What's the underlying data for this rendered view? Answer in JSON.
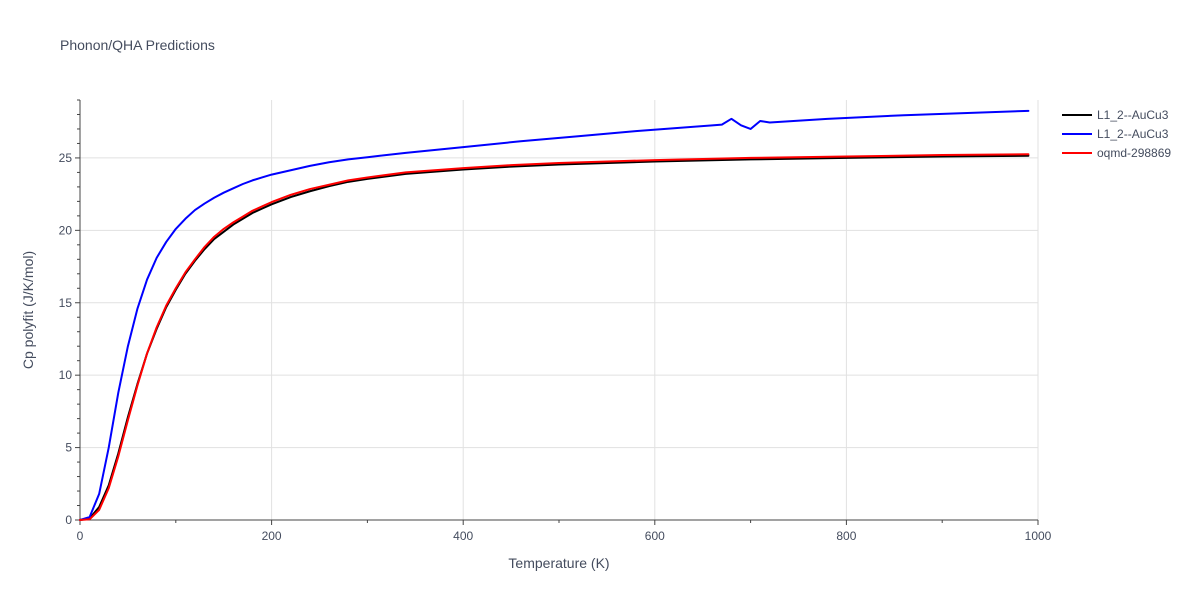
{
  "chart_data": {
    "type": "line",
    "title": "Phonon/QHA Predictions",
    "xlabel": "Temperature (K)",
    "ylabel": "Cp polyfit (J/K/mol)",
    "xlim": [
      0,
      1000
    ],
    "ylim": [
      0,
      29
    ],
    "x_ticks": [
      0,
      200,
      400,
      600,
      800,
      1000
    ],
    "y_ticks": [
      0,
      5,
      10,
      15,
      20,
      25
    ],
    "grid": true,
    "legend_position": "top-right",
    "series": [
      {
        "name": "L1_2--AuCu3",
        "color": "#000000",
        "x": [
          0,
          10,
          20,
          30,
          40,
          50,
          60,
          70,
          80,
          90,
          100,
          110,
          120,
          130,
          140,
          150,
          160,
          170,
          180,
          190,
          200,
          220,
          240,
          260,
          280,
          300,
          340,
          400,
          450,
          500,
          600,
          700,
          800,
          900,
          990
        ],
        "y": [
          0,
          0.1,
          0.9,
          2.4,
          4.6,
          7.1,
          9.4,
          11.5,
          13.2,
          14.7,
          15.9,
          17.0,
          17.9,
          18.7,
          19.4,
          19.9,
          20.4,
          20.8,
          21.2,
          21.5,
          21.8,
          22.3,
          22.7,
          23.05,
          23.35,
          23.55,
          23.9,
          24.2,
          24.4,
          24.55,
          24.75,
          24.9,
          25.0,
          25.1,
          25.15
        ]
      },
      {
        "name": "L1_2--AuCu3",
        "color": "#0000ff",
        "x": [
          0,
          10,
          20,
          30,
          40,
          50,
          60,
          70,
          80,
          90,
          100,
          110,
          120,
          130,
          140,
          150,
          160,
          170,
          180,
          190,
          200,
          220,
          240,
          260,
          280,
          300,
          340,
          400,
          460,
          520,
          580,
          620,
          660,
          670,
          680,
          690,
          700,
          710,
          720,
          780,
          860,
          990
        ],
        "y": [
          0,
          0.2,
          1.8,
          5.0,
          8.8,
          12.0,
          14.6,
          16.6,
          18.1,
          19.2,
          20.1,
          20.8,
          21.4,
          21.85,
          22.25,
          22.6,
          22.9,
          23.2,
          23.45,
          23.65,
          23.85,
          24.15,
          24.45,
          24.7,
          24.9,
          25.05,
          25.35,
          25.75,
          26.15,
          26.5,
          26.85,
          27.05,
          27.25,
          27.3,
          27.7,
          27.25,
          27.0,
          27.55,
          27.45,
          27.7,
          27.95,
          28.25
        ]
      },
      {
        "name": "oqmd-298869",
        "color": "#ff0000",
        "x": [
          0,
          10,
          20,
          30,
          40,
          50,
          60,
          70,
          80,
          90,
          100,
          110,
          120,
          130,
          140,
          150,
          160,
          170,
          180,
          190,
          200,
          220,
          240,
          260,
          280,
          300,
          340,
          400,
          450,
          500,
          600,
          700,
          800,
          900,
          990
        ],
        "y": [
          0,
          0.05,
          0.7,
          2.2,
          4.4,
          6.9,
          9.3,
          11.5,
          13.3,
          14.8,
          16.0,
          17.1,
          18.0,
          18.85,
          19.55,
          20.1,
          20.55,
          20.95,
          21.35,
          21.65,
          21.95,
          22.45,
          22.85,
          23.15,
          23.45,
          23.65,
          24.0,
          24.3,
          24.5,
          24.65,
          24.85,
          25.0,
          25.1,
          25.2,
          25.25
        ]
      }
    ]
  }
}
